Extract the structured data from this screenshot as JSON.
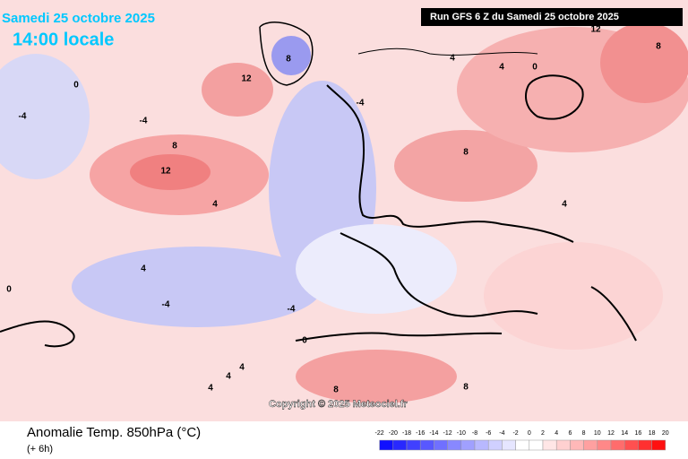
{
  "header": {
    "date": "Samedi 25 octobre 2025",
    "time": "14:00 locale",
    "run": "Run GFS 6 Z du Samedi 25 octobre 2025"
  },
  "footer": {
    "title": "Anomalie Temp. 850hPa (°C)",
    "step": "(+ 6h)",
    "copyright": "Copyright © 2025 Meteociel.fr"
  },
  "legend": {
    "ticks": [
      -22,
      -20,
      -18,
      -16,
      -14,
      -12,
      -10,
      -8,
      -6,
      -4,
      -2,
      0,
      2,
      4,
      6,
      8,
      10,
      12,
      14,
      16,
      18,
      20
    ],
    "colors": [
      "#1010ff",
      "#2828ff",
      "#4040ff",
      "#5858ff",
      "#7070ff",
      "#8888ff",
      "#a0a0ff",
      "#b8b8ff",
      "#d0d0ff",
      "#e6e6ff",
      "#ffffff",
      "#ffffff",
      "#ffe6e6",
      "#ffd0d0",
      "#ffb8b8",
      "#ffa0a0",
      "#ff8888",
      "#ff6c6c",
      "#ff5050",
      "#ff3030",
      "#ff1010"
    ]
  },
  "contour_labels": [
    "12",
    "8",
    "12",
    "8",
    "4",
    "-4",
    "0",
    "-4",
    "4",
    "8",
    "4",
    "0",
    "-4",
    "4",
    "-4",
    "0",
    "4",
    "8",
    "4",
    "12",
    "8",
    "0",
    "-4",
    "4",
    "8",
    "4"
  ]
}
